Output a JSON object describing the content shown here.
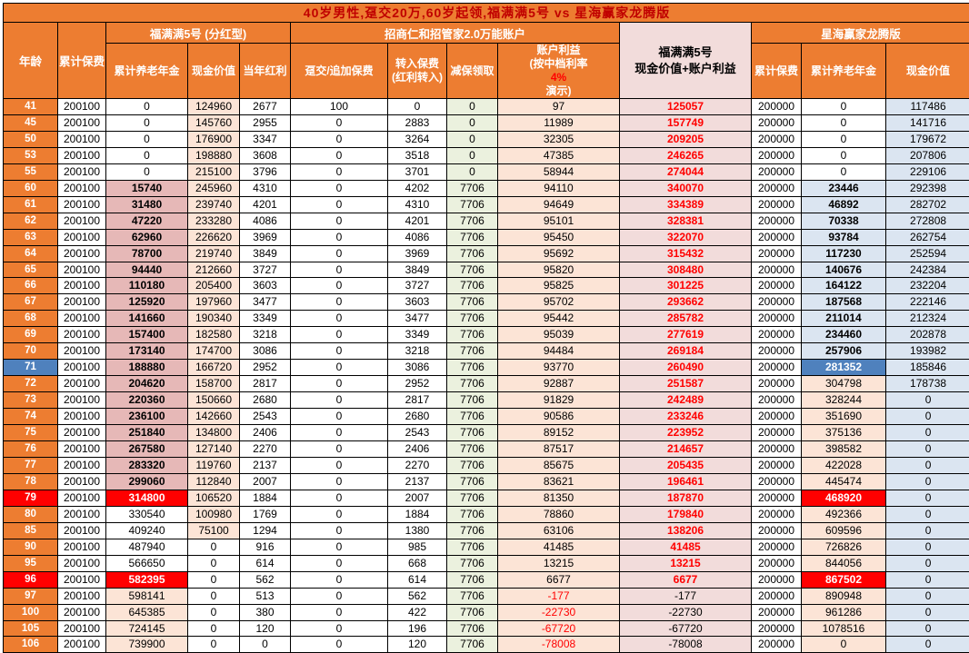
{
  "title": "40岁男性,趸交20万,60岁起领,福满满5号 vs 星海赢家龙腾版",
  "header": {
    "age": "年龄",
    "cum_premium": "累计保费",
    "group_fmm": "福满满5号 (分红型)",
    "group_zhaoshang": "招商仁和招管家2.0万能账户",
    "group_xinghai": "星海赢家龙腾版",
    "fmm_annuity": "累计养老年金",
    "fmm_cash_value": "现金价值",
    "fmm_dividend": "当年红利",
    "lump_addl_premium": "趸交/追加保费",
    "transfer_in_line1": "转入保费",
    "transfer_in_line2": "(红利转入)",
    "withdrawal": "减保领取",
    "account_benefit_line1": "账户利益",
    "account_benefit_pre": "(按中档利率",
    "account_benefit_rate": "4%",
    "account_benefit_post": "演示)",
    "fmm_total_line1": "福满满5号",
    "fmm_total_line2": "现金价值+账户利益",
    "xh_premium": "累计保费",
    "xh_annuity": "累计养老年金",
    "xh_cash_value": "现金价值"
  },
  "colors": {
    "header_orange": "#ED7D31",
    "title_text": "#C00000",
    "pink_annuity": "#E6B8B7",
    "peach": "#FCE4D6",
    "rose_total": "#F2DCDB",
    "green_withdrawal": "#EBF1DE",
    "light_blue": "#DBE5F1",
    "highlight_blue": "#4F81BD",
    "highlight_red": "#FF0000"
  },
  "rows": [
    [
      41,
      200100,
      0,
      124960,
      2677,
      100,
      0,
      0,
      97,
      125057,
      200000,
      0,
      117486
    ],
    [
      45,
      200100,
      0,
      145760,
      2955,
      0,
      2883,
      0,
      11989,
      157749,
      200000,
      0,
      141716
    ],
    [
      50,
      200100,
      0,
      176900,
      3347,
      0,
      3264,
      0,
      32305,
      209205,
      200000,
      0,
      179672
    ],
    [
      53,
      200100,
      0,
      198880,
      3608,
      0,
      3518,
      0,
      47385,
      246265,
      200000,
      0,
      207806
    ],
    [
      55,
      200100,
      0,
      215100,
      3796,
      0,
      3701,
      0,
      58944,
      274044,
      200000,
      0,
      229106
    ],
    [
      60,
      200100,
      15740,
      245960,
      4310,
      0,
      4202,
      7706,
      94110,
      340070,
      200000,
      23446,
      292398
    ],
    [
      61,
      200100,
      31480,
      239740,
      4201,
      0,
      4310,
      7706,
      94649,
      334389,
      200000,
      46892,
      282702
    ],
    [
      62,
      200100,
      47220,
      233280,
      4086,
      0,
      4201,
      7706,
      95101,
      328381,
      200000,
      70338,
      272808
    ],
    [
      63,
      200100,
      62960,
      226620,
      3969,
      0,
      4086,
      7706,
      95450,
      322070,
      200000,
      93784,
      262754
    ],
    [
      64,
      200100,
      78700,
      219740,
      3849,
      0,
      3969,
      7706,
      95692,
      315432,
      200000,
      117230,
      252594
    ],
    [
      65,
      200100,
      94440,
      212660,
      3727,
      0,
      3849,
      7706,
      95820,
      308480,
      200000,
      140676,
      242384
    ],
    [
      66,
      200100,
      110180,
      205400,
      3603,
      0,
      3727,
      7706,
      95825,
      301225,
      200000,
      164122,
      232204
    ],
    [
      67,
      200100,
      125920,
      197960,
      3477,
      0,
      3603,
      7706,
      95702,
      293662,
      200000,
      187568,
      222146
    ],
    [
      68,
      200100,
      141660,
      190340,
      3349,
      0,
      3477,
      7706,
      95442,
      285782,
      200000,
      211014,
      212324
    ],
    [
      69,
      200100,
      157400,
      182580,
      3218,
      0,
      3349,
      7706,
      95039,
      277619,
      200000,
      234460,
      202878
    ],
    [
      70,
      200100,
      173140,
      174700,
      3086,
      0,
      3218,
      7706,
      94484,
      269184,
      200000,
      257906,
      193982
    ],
    [
      71,
      200100,
      188880,
      166720,
      2952,
      0,
      3086,
      7706,
      93770,
      260490,
      200000,
      281352,
      185846
    ],
    [
      72,
      200100,
      204620,
      158700,
      2817,
      0,
      2952,
      7706,
      92887,
      251587,
      200000,
      304798,
      178738
    ],
    [
      73,
      200100,
      220360,
      150660,
      2680,
      0,
      2817,
      7706,
      91829,
      242489,
      200000,
      328244,
      0
    ],
    [
      74,
      200100,
      236100,
      142660,
      2543,
      0,
      2680,
      7706,
      90586,
      233246,
      200000,
      351690,
      0
    ],
    [
      75,
      200100,
      251840,
      134800,
      2406,
      0,
      2543,
      7706,
      89152,
      223952,
      200000,
      375136,
      0
    ],
    [
      76,
      200100,
      267580,
      127140,
      2270,
      0,
      2406,
      7706,
      87517,
      214657,
      200000,
      398582,
      0
    ],
    [
      77,
      200100,
      283320,
      119760,
      2137,
      0,
      2270,
      7706,
      85675,
      205435,
      200000,
      422028,
      0
    ],
    [
      78,
      200100,
      299060,
      112840,
      2007,
      0,
      2137,
      7706,
      83621,
      196461,
      200000,
      445474,
      0
    ],
    [
      79,
      200100,
      314800,
      106520,
      1884,
      0,
      2007,
      7706,
      81350,
      187870,
      200000,
      468920,
      0
    ],
    [
      80,
      200100,
      330540,
      100980,
      1769,
      0,
      1884,
      7706,
      78860,
      179840,
      200000,
      492366,
      0
    ],
    [
      85,
      200100,
      409240,
      75100,
      1294,
      0,
      1380,
      7706,
      63106,
      138206,
      200000,
      609596,
      0
    ],
    [
      90,
      200100,
      487940,
      0,
      916,
      0,
      985,
      7706,
      41485,
      41485,
      200000,
      726826,
      0
    ],
    [
      95,
      200100,
      566650,
      0,
      614,
      0,
      668,
      7706,
      13215,
      13215,
      200000,
      844056,
      0
    ],
    [
      96,
      200100,
      582395,
      0,
      562,
      0,
      614,
      7706,
      6677,
      6677,
      200000,
      867502,
      0
    ],
    [
      97,
      200100,
      598141,
      0,
      513,
      0,
      562,
      7706,
      -177,
      -177,
      200000,
      890948,
      0
    ],
    [
      100,
      200100,
      645385,
      0,
      380,
      0,
      422,
      7706,
      -22730,
      -22730,
      200000,
      961286,
      0
    ],
    [
      105,
      200100,
      724145,
      0,
      120,
      0,
      196,
      7706,
      -67720,
      -67720,
      200000,
      1078516,
      0
    ],
    [
      106,
      200100,
      739900,
      0,
      0,
      0,
      120,
      7706,
      -78008,
      -78008,
      200000,
      0,
      0
    ]
  ]
}
